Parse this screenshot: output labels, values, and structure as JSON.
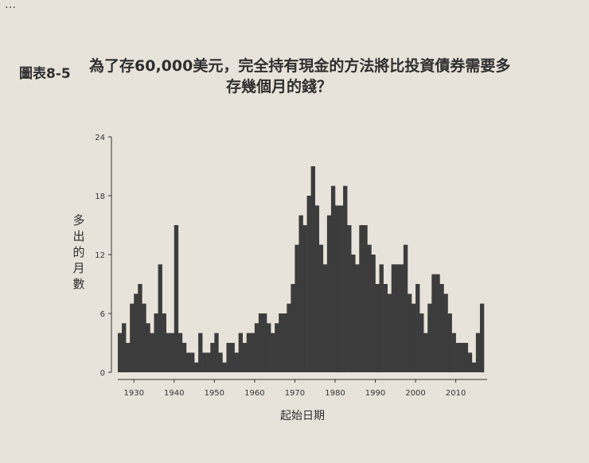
{
  "page_corner": "…",
  "figure": {
    "label": "圖表8-5",
    "title_line1": "為了存60,000美元，完全持有現金的方法將比投資債券需要多",
    "title_line2": "存幾個月的錢？"
  },
  "chart_data": {
    "type": "bar",
    "title": "為了存60,000美元，完全持有現金的方法將比投資債券需要多存幾個月的錢？",
    "xlabel": "起始日期",
    "ylabel": "多出的月數",
    "xlim": [
      1926,
      2017
    ],
    "ylim": [
      0,
      24
    ],
    "x_ticks": [
      1930,
      1940,
      1950,
      1960,
      1970,
      1980,
      1990,
      2000,
      2010
    ],
    "y_ticks": [
      0,
      6,
      12,
      18,
      24
    ],
    "grid": false,
    "bar_color": "#3c3c3c",
    "x": [
      1926,
      1927,
      1928,
      1929,
      1930,
      1931,
      1932,
      1933,
      1934,
      1935,
      1936,
      1937,
      1938,
      1939,
      1940,
      1941,
      1942,
      1943,
      1944,
      1945,
      1946,
      1947,
      1948,
      1949,
      1950,
      1951,
      1952,
      1953,
      1954,
      1955,
      1956,
      1957,
      1958,
      1959,
      1960,
      1961,
      1962,
      1963,
      1964,
      1965,
      1966,
      1967,
      1968,
      1969,
      1970,
      1971,
      1972,
      1973,
      1974,
      1975,
      1976,
      1977,
      1978,
      1979,
      1980,
      1981,
      1982,
      1983,
      1984,
      1985,
      1986,
      1987,
      1988,
      1989,
      1990,
      1991,
      1992,
      1993,
      1994,
      1995,
      1996,
      1997,
      1998,
      1999,
      2000,
      2001,
      2002,
      2003,
      2004,
      2005,
      2006,
      2007,
      2008,
      2009,
      2010,
      2011,
      2012,
      2013,
      2014,
      2015,
      2016
    ],
    "values": [
      4,
      5,
      3,
      7,
      8,
      9,
      7,
      5,
      4,
      6,
      11,
      6,
      4,
      4,
      15,
      4,
      3,
      2,
      2,
      1,
      4,
      2,
      2,
      3,
      4,
      2,
      1,
      3,
      3,
      2,
      4,
      3,
      4,
      4,
      5,
      6,
      6,
      5,
      4,
      5,
      6,
      6,
      7,
      9,
      13,
      16,
      15,
      18,
      21,
      17,
      13,
      11,
      16,
      19,
      17,
      17,
      19,
      15,
      12,
      11,
      15,
      15,
      13,
      12,
      9,
      11,
      9,
      8,
      11,
      11,
      11,
      13,
      8,
      7,
      9,
      6,
      4,
      7,
      10,
      10,
      9,
      8,
      6,
      4,
      3,
      3,
      3,
      2,
      1,
      4,
      7
    ]
  }
}
